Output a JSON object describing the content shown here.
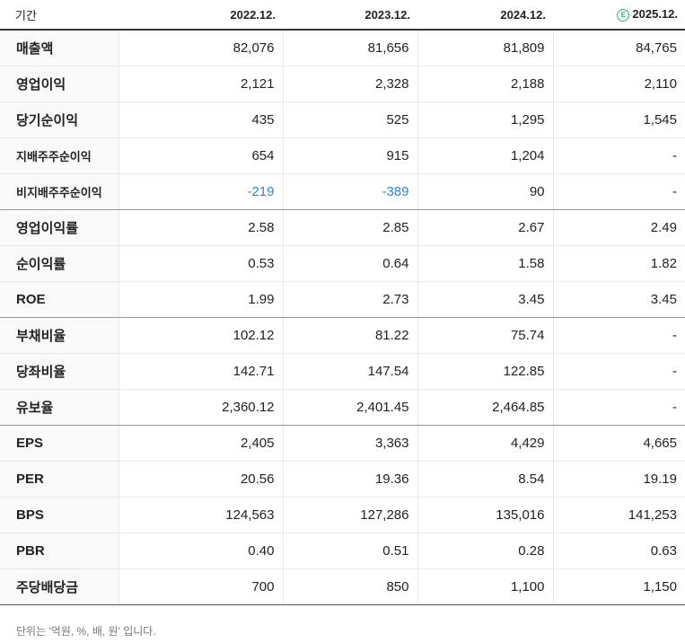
{
  "table": {
    "header": {
      "label": "기간",
      "periods": [
        "2022.12.",
        "2023.12.",
        "2024.12.",
        "2025.12."
      ],
      "estimate_icon": "E"
    },
    "rows": [
      {
        "label": "매출액",
        "values": [
          "82,076",
          "81,656",
          "81,809",
          "84,765"
        ]
      },
      {
        "label": "영업이익",
        "values": [
          "2,121",
          "2,328",
          "2,188",
          "2,110"
        ]
      },
      {
        "label": "당기순이익",
        "values": [
          "435",
          "525",
          "1,295",
          "1,545"
        ]
      },
      {
        "label": "지배주주순이익",
        "values": [
          "654",
          "915",
          "1,204",
          "-"
        ]
      },
      {
        "label": "비지배주주순이익",
        "values": [
          "-219",
          "-389",
          "90",
          "-"
        ]
      },
      {
        "label": "영업이익률",
        "values": [
          "2.58",
          "2.85",
          "2.67",
          "2.49"
        ]
      },
      {
        "label": "순이익률",
        "values": [
          "0.53",
          "0.64",
          "1.58",
          "1.82"
        ]
      },
      {
        "label": "ROE",
        "values": [
          "1.99",
          "2.73",
          "3.45",
          "3.45"
        ]
      },
      {
        "label": "부채비율",
        "values": [
          "102.12",
          "81.22",
          "75.74",
          "-"
        ]
      },
      {
        "label": "당좌비율",
        "values": [
          "142.71",
          "147.54",
          "122.85",
          "-"
        ]
      },
      {
        "label": "유보율",
        "values": [
          "2,360.12",
          "2,401.45",
          "2,464.85",
          "-"
        ]
      },
      {
        "label": "EPS",
        "values": [
          "2,405",
          "3,363",
          "4,429",
          "4,665"
        ]
      },
      {
        "label": "PER",
        "values": [
          "20.56",
          "19.36",
          "8.54",
          "19.19"
        ]
      },
      {
        "label": "BPS",
        "values": [
          "124,563",
          "127,286",
          "135,016",
          "141,253"
        ]
      },
      {
        "label": "PBR",
        "values": [
          "0.40",
          "0.51",
          "0.28",
          "0.63"
        ]
      },
      {
        "label": "주당배당금",
        "values": [
          "700",
          "850",
          "1,100",
          "1,150"
        ]
      }
    ]
  },
  "footnote": "단위는 '억원, %, 배, 원' 입니다.",
  "colors": {
    "negative": "#2f86d6",
    "estimate_icon": "#2bb673"
  }
}
